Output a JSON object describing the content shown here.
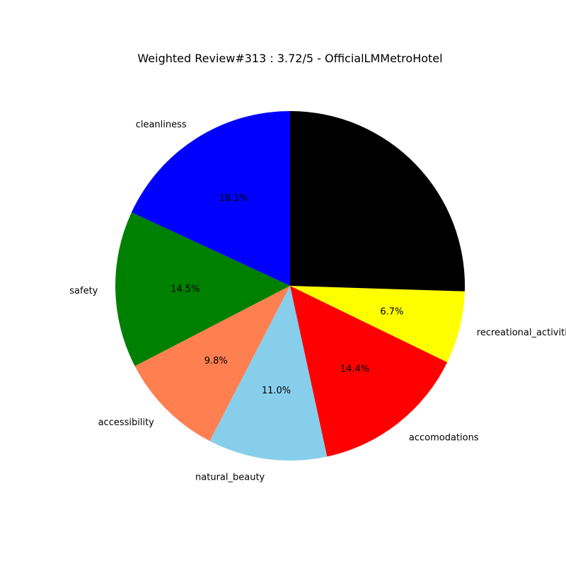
{
  "chart_data": {
    "type": "pie",
    "title": "Weighted Review#313 : 3.72/5 - OfficialLMMetroHotel",
    "start_angle_deg": 90,
    "direction": "counterclockwise",
    "slices": [
      {
        "label": "cleanliness",
        "value": 18.1,
        "pct_label": "18.1%",
        "color": "#0000ff"
      },
      {
        "label": "safety",
        "value": 14.5,
        "pct_label": "14.5%",
        "color": "#008000"
      },
      {
        "label": "accessibility",
        "value": 9.8,
        "pct_label": "9.8%",
        "color": "#ff7f50"
      },
      {
        "label": "natural_beauty",
        "value": 11.0,
        "pct_label": "11.0%",
        "color": "#87ceeb"
      },
      {
        "label": "accomodations",
        "value": 14.4,
        "pct_label": "14.4%",
        "color": "#ff0000"
      },
      {
        "label": "recreational_activities",
        "value": 6.7,
        "pct_label": "6.7%",
        "color": "#ffff00"
      },
      {
        "label": "",
        "value": 25.5,
        "pct_label": "",
        "color": "#000000"
      }
    ]
  }
}
